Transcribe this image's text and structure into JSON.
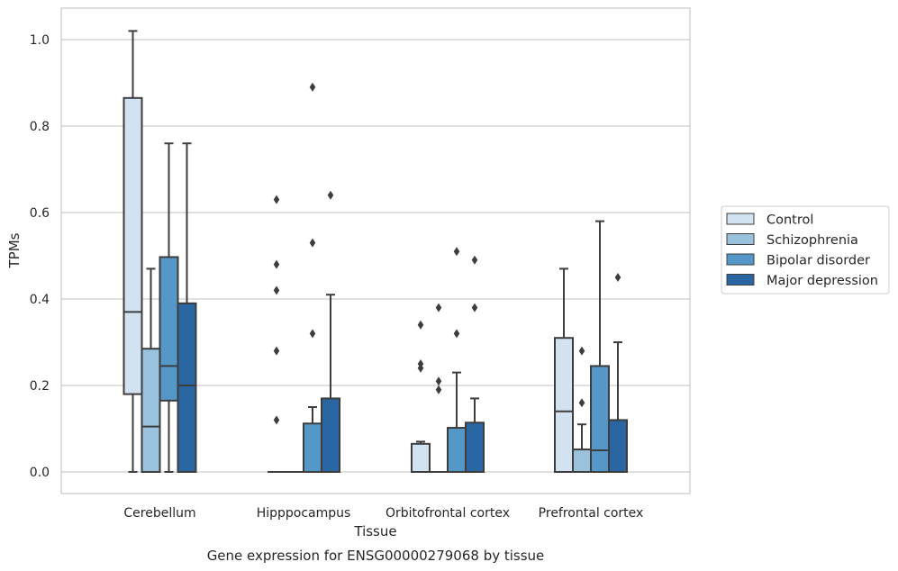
{
  "chart_data": {
    "type": "boxplot",
    "title": "Gene expression for ENSG00000279068 by tissue",
    "xlabel": "Tissue",
    "ylabel": "TPMs",
    "ylim": [
      -0.05,
      1.075
    ],
    "yticks": [
      0.0,
      0.2,
      0.4,
      0.6,
      0.8,
      1.0
    ],
    "ytick_labels": [
      "0.0",
      "0.2",
      "0.4",
      "0.6",
      "0.8",
      "1.0"
    ],
    "grid": true,
    "legend_position": "right",
    "categories": [
      "Cerebellum",
      "Hipppocampus",
      "Orbitofrontal cortex",
      "Prefrontal cortex"
    ],
    "series": [
      {
        "name": "Control",
        "color": "#d2e2f0",
        "boxes": [
          {
            "whislo": 0.0,
            "q1": 0.18,
            "med": 0.37,
            "q3": 0.865,
            "whishi": 1.02,
            "fliers": []
          },
          {
            "whislo": 0.0,
            "q1": 0.0,
            "med": 0.0,
            "q3": 0.0,
            "whishi": 0.0,
            "fliers": [
              0.12,
              0.28,
              0.42,
              0.48,
              0.63
            ]
          },
          {
            "whislo": 0.0,
            "q1": 0.0,
            "med": 0.0,
            "q3": 0.065,
            "whishi": 0.07,
            "fliers": [
              0.24,
              0.25,
              0.34
            ]
          },
          {
            "whislo": 0.0,
            "q1": 0.0,
            "med": 0.14,
            "q3": 0.31,
            "whishi": 0.47,
            "fliers": []
          }
        ]
      },
      {
        "name": "Schizophrenia",
        "color": "#9ac2dd",
        "boxes": [
          {
            "whislo": 0.0,
            "q1": 0.0,
            "med": 0.105,
            "q3": 0.285,
            "whishi": 0.47,
            "fliers": []
          },
          {
            "whislo": 0.0,
            "q1": 0.0,
            "med": 0.0,
            "q3": 0.0,
            "whishi": 0.0,
            "fliers": []
          },
          {
            "whislo": 0.0,
            "q1": 0.0,
            "med": 0.0,
            "q3": 0.0,
            "whishi": 0.0,
            "fliers": [
              0.19,
              0.21,
              0.38
            ]
          },
          {
            "whislo": 0.0,
            "q1": 0.0,
            "med": 0.0,
            "q3": 0.052,
            "whishi": 0.11,
            "fliers": [
              0.16,
              0.28
            ]
          }
        ]
      },
      {
        "name": "Bipolar disorder",
        "color": "#5598c8",
        "boxes": [
          {
            "whislo": 0.0,
            "q1": 0.165,
            "med": 0.245,
            "q3": 0.497,
            "whishi": 0.76,
            "fliers": []
          },
          {
            "whislo": 0.0,
            "q1": 0.0,
            "med": 0.0,
            "q3": 0.112,
            "whishi": 0.15,
            "fliers": [
              0.32,
              0.53,
              0.89
            ]
          },
          {
            "whislo": 0.0,
            "q1": 0.0,
            "med": 0.0,
            "q3": 0.102,
            "whishi": 0.23,
            "fliers": [
              0.32,
              0.51
            ]
          },
          {
            "whislo": 0.0,
            "q1": 0.0,
            "med": 0.05,
            "q3": 0.245,
            "whishi": 0.58,
            "fliers": []
          }
        ]
      },
      {
        "name": "Major depression",
        "color": "#2a67a2",
        "boxes": [
          {
            "whislo": 0.0,
            "q1": 0.0,
            "med": 0.2,
            "q3": 0.39,
            "whishi": 0.76,
            "fliers": []
          },
          {
            "whislo": 0.0,
            "q1": 0.0,
            "med": 0.0,
            "q3": 0.17,
            "whishi": 0.41,
            "fliers": [
              0.64
            ]
          },
          {
            "whislo": 0.0,
            "q1": 0.0,
            "med": 0.0,
            "q3": 0.114,
            "whishi": 0.17,
            "fliers": [
              0.38,
              0.49
            ]
          },
          {
            "whislo": 0.0,
            "q1": 0.0,
            "med": 0.0,
            "q3": 0.12,
            "whishi": 0.3,
            "fliers": [
              0.45
            ]
          }
        ]
      }
    ]
  }
}
